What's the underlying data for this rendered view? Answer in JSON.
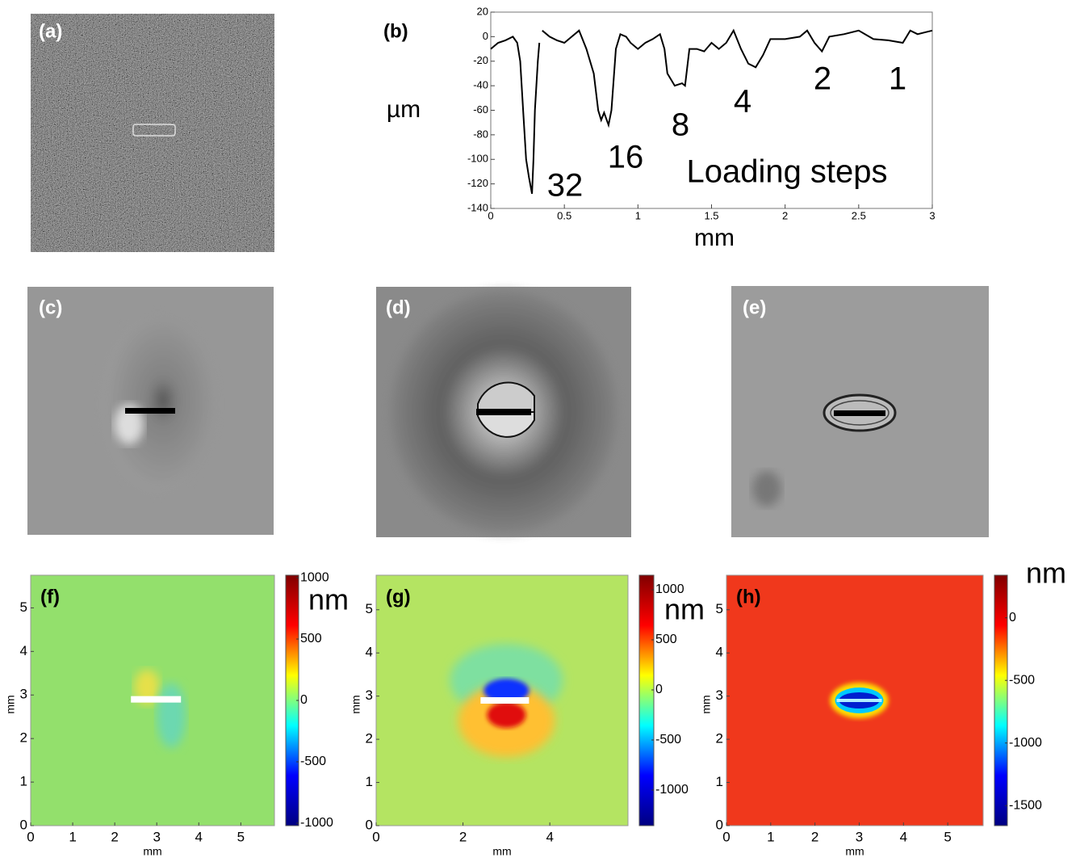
{
  "image_panels": [
    {
      "label": "(a)"
    },
    {
      "label": "(c)"
    },
    {
      "label": "(d)"
    },
    {
      "label": "(e)"
    }
  ],
  "chart_data": [
    {
      "type": "line",
      "label": "(b)",
      "ylabel": "µm",
      "xlabel": "mm",
      "color": "#000000",
      "x": [
        0,
        0.05,
        0.1,
        0.15,
        0.18,
        0.2,
        0.22,
        0.24,
        0.26,
        0.28,
        0.29,
        0.3,
        0.32,
        0.33,
        0.34,
        0.35,
        0.4,
        0.45,
        0.5,
        0.55,
        0.6,
        0.65,
        0.7,
        0.73,
        0.75,
        0.77,
        0.8,
        0.82,
        0.85,
        0.88,
        0.92,
        0.95,
        1.0,
        1.05,
        1.1,
        1.15,
        1.18,
        1.2,
        1.25,
        1.3,
        1.32,
        1.35,
        1.4,
        1.45,
        1.5,
        1.55,
        1.6,
        1.65,
        1.7,
        1.75,
        1.8,
        1.85,
        1.9,
        2.0,
        2.1,
        2.15,
        2.2,
        2.25,
        2.3,
        2.4,
        2.5,
        2.6,
        2.7,
        2.8,
        2.85,
        2.9,
        3.0
      ],
      "values": [
        -10,
        -5,
        -3,
        0,
        -5,
        -20,
        -60,
        -100,
        -115,
        -128,
        -100,
        -60,
        -20,
        -5,
        null,
        5,
        0,
        -3,
        -5,
        0,
        5,
        -10,
        -30,
        -60,
        -68,
        -62,
        -72,
        -60,
        -10,
        2,
        0,
        -5,
        -10,
        -5,
        -2,
        2,
        -10,
        -30,
        -40,
        -38,
        -40,
        -10,
        -10,
        -12,
        -5,
        -10,
        -5,
        5,
        -10,
        -22,
        -25,
        -15,
        -2,
        -2,
        0,
        5,
        -5,
        -12,
        0,
        2,
        5,
        -2,
        -3,
        -5,
        5,
        2,
        5
      ],
      "xlim": [
        0,
        3
      ],
      "ylim": [
        -140,
        20
      ],
      "xticks": [
        0,
        0.5,
        1,
        1.5,
        2,
        2.5,
        3
      ],
      "yticks": [
        -140,
        -120,
        -100,
        -80,
        -60,
        -40,
        -20,
        0,
        20
      ],
      "annotations": [
        "32",
        "16",
        "8",
        "4",
        "2",
        "1",
        "Loading steps"
      ]
    },
    {
      "type": "heatmap",
      "label": "(f)",
      "xlabel": "mm",
      "ylabel": "mm",
      "background_color": "#93e06c",
      "xlim": [
        0,
        5.8
      ],
      "ylim": [
        0,
        5.75
      ],
      "xticks": [
        0,
        1,
        2,
        3,
        4,
        5
      ],
      "yticks": [
        0,
        1,
        2,
        3,
        4,
        5
      ],
      "colorbar": {
        "unit": "nm",
        "lim": [
          -1020,
          1020
        ],
        "ticks": [
          -1000,
          -500,
          0,
          500,
          1000
        ],
        "colormap": [
          "#000080",
          "#0000ff",
          "#00ffff",
          "#ffff00",
          "#ff0000",
          "#800000"
        ]
      }
    },
    {
      "type": "heatmap",
      "label": "(g)",
      "xlabel": "mm",
      "ylabel": "mm",
      "background_color": "#b4e462",
      "xlim": [
        0,
        5.8
      ],
      "ylim": [
        0,
        5.8
      ],
      "xticks": [
        0,
        2,
        4
      ],
      "yticks": [
        0,
        1,
        2,
        3,
        4,
        5
      ],
      "colorbar": {
        "unit": "nm",
        "lim": [
          -1355,
          1145
        ],
        "ticks": [
          -1000,
          -500,
          0,
          500,
          1000
        ],
        "colormap": [
          "#000080",
          "#0000ff",
          "#00ffff",
          "#ffff00",
          "#ff0000",
          "#800000"
        ]
      }
    },
    {
      "type": "heatmap",
      "label": "(h)",
      "xlabel": "mm",
      "ylabel": "mm",
      "background_color": "#f0381c",
      "xlim": [
        0,
        5.8
      ],
      "ylim": [
        0,
        5.8
      ],
      "xticks": [
        0,
        1,
        2,
        3,
        4,
        5
      ],
      "yticks": [
        0,
        1,
        2,
        3,
        4,
        5
      ],
      "colorbar": {
        "unit": "nm",
        "lim": [
          -1660,
          340
        ],
        "ticks": [
          -1500,
          -1000,
          -500,
          0
        ],
        "colormap": [
          "#000080",
          "#0000ff",
          "#00ffff",
          "#ffff00",
          "#ff0000",
          "#800000"
        ]
      }
    }
  ]
}
